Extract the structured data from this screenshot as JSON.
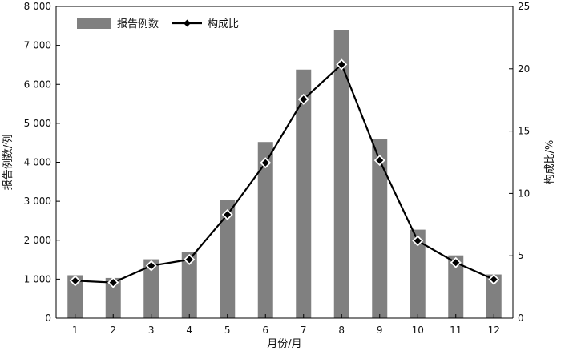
{
  "chart_data": {
    "type": "bar",
    "title": "",
    "categories": [
      "1",
      "2",
      "3",
      "4",
      "5",
      "6",
      "7",
      "8",
      "9",
      "10",
      "11",
      "12"
    ],
    "xlabel": "月份/月",
    "ylabel": "报告例数/例",
    "y2label": "构成比/%",
    "ylim": [
      0,
      8000
    ],
    "y2lim": [
      0,
      25
    ],
    "yticks": [
      "0",
      "1 000",
      "2 000",
      "3 000",
      "4 000",
      "5 000",
      "6 000",
      "7 000",
      "8 000"
    ],
    "y2ticks": [
      "0",
      "5",
      "10",
      "15",
      "20",
      "25"
    ],
    "grid": false,
    "legend_position": "top-left",
    "series": [
      {
        "name": "报告例数",
        "type": "bar",
        "axis": "left",
        "color": "#808080",
        "values": [
          1100,
          1030,
          1510,
          1700,
          3030,
          4520,
          6380,
          7400,
          4600,
          2270,
          1610,
          1120
        ]
      },
      {
        "name": "构成比",
        "type": "line",
        "axis": "right",
        "color": "#000000",
        "marker": "diamond",
        "values": [
          3.0,
          2.85,
          4.2,
          4.7,
          8.3,
          12.45,
          17.55,
          20.35,
          12.65,
          6.2,
          4.45,
          3.1
        ]
      }
    ]
  }
}
